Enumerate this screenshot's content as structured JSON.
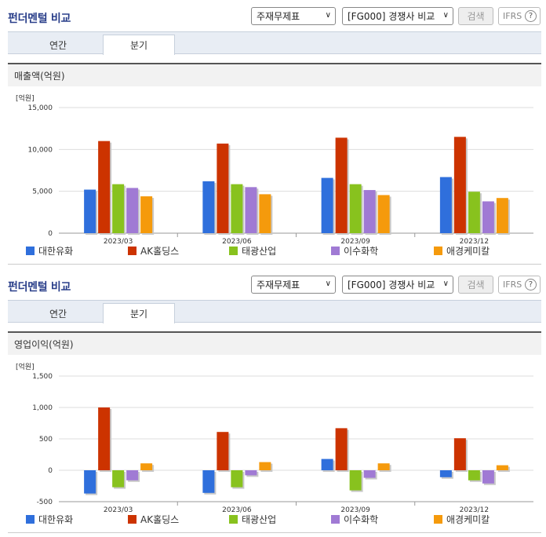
{
  "panels": [
    {
      "title": "펀더멘털 비교",
      "select_statement": "주재무제표",
      "select_compare": "[FG000] 경쟁사 비교",
      "search_label": "검색",
      "ifrs_label": "IFRS",
      "help_glyph": "?",
      "tabs": [
        {
          "label": "연간"
        },
        {
          "label": "분기"
        }
      ],
      "chart_header": "매출액(억원)",
      "unit_label": "[억원]",
      "chart_data": {
        "type": "bar",
        "categories": [
          "2023/03",
          "2023/06",
          "2023/09",
          "2023/12"
        ],
        "series": [
          {
            "name": "대한유화",
            "color": "#2f6fdc",
            "values": [
              5200,
              6200,
              6600,
              6700
            ]
          },
          {
            "name": "AK홀딩스",
            "color": "#cc3300",
            "values": [
              11000,
              10700,
              11400,
              11500
            ]
          },
          {
            "name": "태광산업",
            "color": "#88c21e",
            "values": [
              5850,
              5850,
              5850,
              4950
            ]
          },
          {
            "name": "이수화학",
            "color": "#a07ad4",
            "values": [
              5400,
              5500,
              5150,
              3800
            ]
          },
          {
            "name": "애경케미칼",
            "color": "#f59a0c",
            "values": [
              4400,
              4650,
              4550,
              4200
            ]
          }
        ],
        "ylim": [
          0,
          15000
        ],
        "yticks": [
          "0",
          "5,000",
          "10,000",
          "15,000"
        ],
        "ytick_values": [
          0,
          5000,
          10000,
          15000
        ],
        "legend_position": "bottom"
      }
    },
    {
      "title": "펀더멘털 비교",
      "select_statement": "주재무제표",
      "select_compare": "[FG000] 경쟁사 비교",
      "search_label": "검색",
      "ifrs_label": "IFRS",
      "help_glyph": "?",
      "tabs": [
        {
          "label": "연간"
        },
        {
          "label": "분기"
        }
      ],
      "chart_header": "영업이익(억원)",
      "unit_label": "[억원]",
      "chart_data": {
        "type": "bar",
        "categories": [
          "2023/03",
          "2023/06",
          "2023/09",
          "2023/12"
        ],
        "series": [
          {
            "name": "대한유화",
            "color": "#2f6fdc",
            "values": [
              -370,
              -360,
              180,
              -110
            ]
          },
          {
            "name": "AK홀딩스",
            "color": "#cc3300",
            "values": [
              1000,
              610,
              670,
              510
            ]
          },
          {
            "name": "태광산업",
            "color": "#88c21e",
            "values": [
              -270,
              -270,
              -320,
              -160
            ]
          },
          {
            "name": "이수화학",
            "color": "#a07ad4",
            "values": [
              -160,
              -80,
              -120,
              -210
            ]
          },
          {
            "name": "애경케미칼",
            "color": "#f59a0c",
            "values": [
              110,
              130,
              110,
              80
            ]
          }
        ],
        "ylim": [
          -500,
          1500
        ],
        "yticks": [
          "-500",
          "0",
          "500",
          "1,000",
          "1,500"
        ],
        "ytick_values": [
          -500,
          0,
          500,
          1000,
          1500
        ],
        "legend_position": "bottom"
      }
    }
  ]
}
